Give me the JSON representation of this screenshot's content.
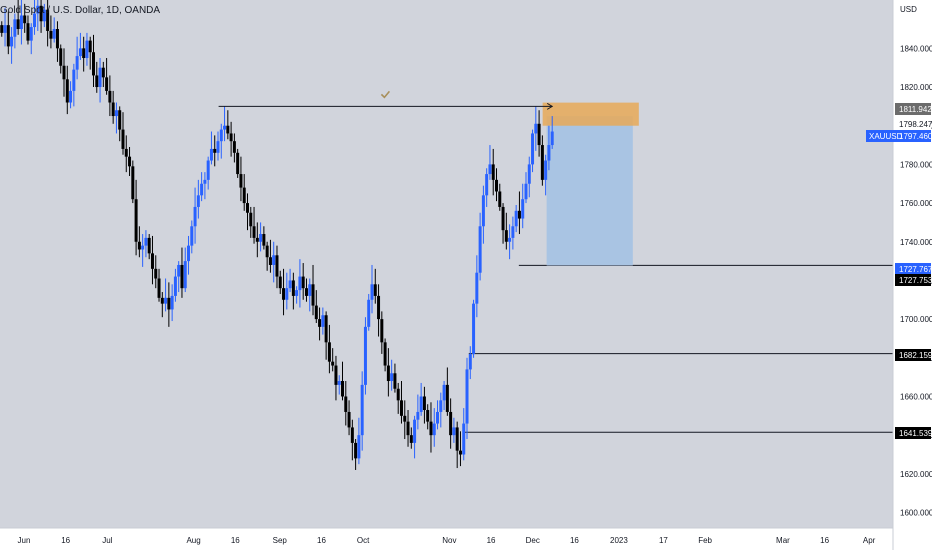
{
  "title": "Gold Spot / U.S. Dollar, 1D, OANDA",
  "currency": "USD",
  "colors": {
    "chart_bg": "#d1d4dc",
    "up": "#2962ff",
    "down": "#000000",
    "target_zone": "#a9c4e3",
    "stop_zone": "#e8a958",
    "symbol_tag": "#2962ff"
  },
  "chart_data": {
    "type": "candlestick",
    "title": "Gold Spot / U.S. Dollar, 1D, OANDA",
    "ylim": [
      1592,
      1865
    ],
    "y_ticks": [
      "1600.000",
      "1620.000",
      "1640.000",
      "1660.000",
      "1680.000",
      "1700.000",
      "1720.000",
      "1740.000",
      "1760.000",
      "1780.000",
      "1800.000",
      "1820.000",
      "1840.000"
    ],
    "x_ticks": [
      "Jun",
      "16",
      "Jul",
      "Aug",
      "16",
      "Sep",
      "16",
      "Oct",
      "Nov",
      "16",
      "Dec",
      "16",
      "2023",
      "17",
      "Feb",
      "Mar",
      "16",
      "Apr"
    ],
    "x_tick_days": [
      0,
      15,
      30,
      61,
      76,
      92,
      107,
      122,
      153,
      168,
      183,
      198,
      214,
      230,
      245,
      273,
      288,
      304
    ],
    "closes": [
      1848,
      1852,
      1841,
      1846,
      1855,
      1850,
      1857,
      1853,
      1844,
      1851,
      1858,
      1862,
      1854,
      1860,
      1849,
      1845,
      1850,
      1840,
      1831,
      1824,
      1812,
      1818,
      1829,
      1836,
      1840,
      1835,
      1844,
      1838,
      1826,
      1820,
      1830,
      1825,
      1818,
      1812,
      1805,
      1808,
      1798,
      1788,
      1784,
      1779,
      1762,
      1740,
      1736,
      1738,
      1742,
      1734,
      1726,
      1721,
      1711,
      1708,
      1711,
      1705,
      1712,
      1722,
      1728,
      1716,
      1730,
      1738,
      1748,
      1758,
      1764,
      1770,
      1772,
      1782,
      1788,
      1786,
      1792,
      1798,
      1800,
      1796,
      1792,
      1786,
      1775,
      1768,
      1760,
      1755,
      1748,
      1742,
      1740,
      1744,
      1738,
      1732,
      1728,
      1733,
      1722,
      1716,
      1710,
      1716,
      1720,
      1712,
      1715,
      1722,
      1716,
      1712,
      1718,
      1707,
      1700,
      1696,
      1702,
      1688,
      1678,
      1676,
      1666,
      1668,
      1660,
      1652,
      1644,
      1636,
      1628,
      1640,
      1666,
      1696,
      1710,
      1718,
      1712,
      1700,
      1688,
      1676,
      1668,
      1672,
      1664,
      1658,
      1650,
      1647,
      1640,
      1636,
      1648,
      1652,
      1660,
      1653,
      1647,
      1640,
      1646,
      1652,
      1658,
      1666,
      1652,
      1640,
      1644,
      1632,
      1630,
      1646,
      1674,
      1682,
      1708,
      1724,
      1748,
      1764,
      1775,
      1780,
      1772,
      1766,
      1758,
      1746,
      1740,
      1742,
      1748,
      1756,
      1752,
      1762,
      1770,
      1780,
      1796,
      1801,
      1790,
      1772,
      1782,
      1790,
      1797
    ],
    "ranges": [
      [
        1838,
        1865
      ],
      [
        1832,
        1860
      ],
      [
        1862,
        1875
      ],
      [
        1839,
        1859
      ],
      [
        1828,
        1850
      ],
      [
        1830,
        1855
      ],
      [
        1831,
        1862
      ],
      [
        1824,
        1845
      ],
      [
        1820,
        1850
      ],
      [
        1800,
        1842
      ],
      [
        1770,
        1825
      ],
      [
        1730,
        1770
      ],
      [
        1700,
        1745
      ],
      [
        1678,
        1720
      ],
      [
        1613,
        1660
      ],
      [
        1630,
        1656
      ],
      [
        1640,
        1690
      ],
      [
        1658,
        1705
      ],
      [
        1620,
        1690
      ],
      [
        1695,
        1735
      ],
      [
        1740,
        1784
      ]
    ],
    "series": [
      {
        "name": "XAUUSD",
        "last": 1797.46
      }
    ],
    "price_labels": [
      "1811.942",
      "1798.247",
      "1797.460",
      "1727.767",
      "1727.753",
      "1682.159",
      "1641.539"
    ],
    "horizontal_levels": [
      1727.767,
      1682.159,
      1641.539
    ],
    "trend_line": {
      "from_day": 70,
      "to_day": 190,
      "price": 1810
    },
    "position": {
      "from_day": 188,
      "to_day": 219,
      "entry": 1805,
      "stop": 1811.942,
      "target": 1727.767
    },
    "grid": false
  }
}
